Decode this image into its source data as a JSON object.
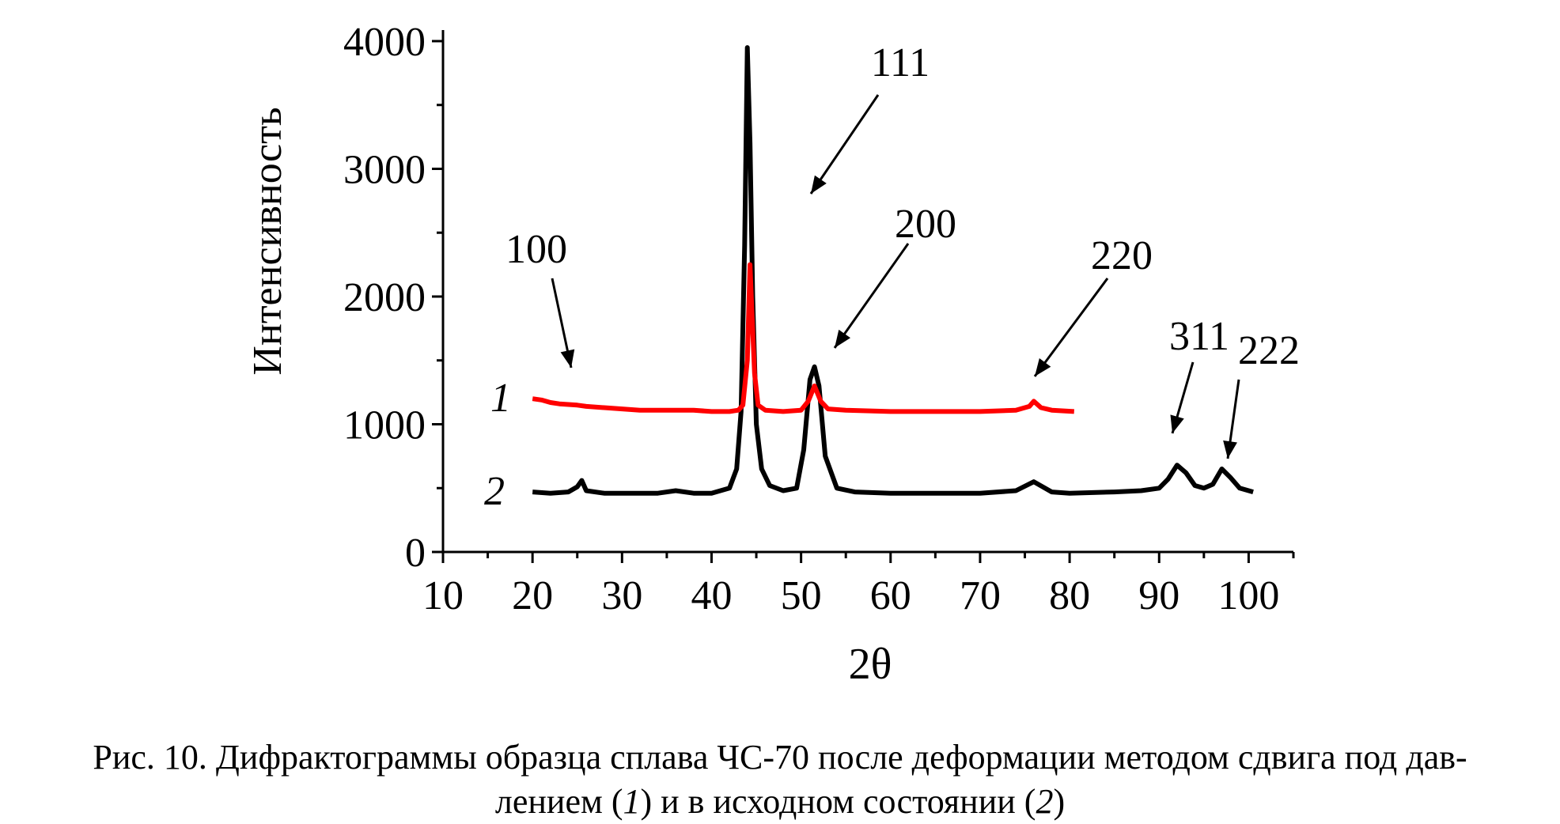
{
  "chart_data": {
    "type": "line",
    "xlabel": "2θ",
    "ylabel": "Интенсивность",
    "xlim": [
      10,
      105
    ],
    "ylim": [
      0,
      4000
    ],
    "xticks": [
      10,
      20,
      30,
      40,
      50,
      60,
      70,
      80,
      90,
      100
    ],
    "yticks": [
      0,
      1000,
      2000,
      3000,
      4000
    ],
    "xtick_labels": [
      "10",
      "20",
      "30",
      "40",
      "50",
      "60",
      "70",
      "80",
      "90",
      "100"
    ],
    "ytick_labels": [
      "0",
      "1000",
      "2000",
      "3000",
      "4000"
    ],
    "grid": false,
    "series": [
      {
        "name": "1",
        "color": "#ff0000",
        "x": [
          20,
          21,
          22,
          23,
          24,
          25,
          26,
          28,
          30,
          32,
          34,
          36,
          38,
          40,
          42,
          43,
          43.5,
          44,
          44.3,
          44.5,
          44.8,
          45.2,
          46,
          48,
          50,
          50.8,
          51.5,
          52.2,
          53,
          55,
          60,
          65,
          70,
          74,
          75.5,
          76,
          76.8,
          78,
          80.5
        ],
        "values": [
          1200,
          1190,
          1170,
          1160,
          1155,
          1150,
          1140,
          1130,
          1120,
          1110,
          1110,
          1110,
          1110,
          1100,
          1100,
          1110,
          1150,
          1500,
          2250,
          1900,
          1400,
          1150,
          1110,
          1100,
          1110,
          1180,
          1300,
          1180,
          1120,
          1110,
          1100,
          1100,
          1100,
          1110,
          1140,
          1180,
          1130,
          1110,
          1100
        ]
      },
      {
        "name": "2",
        "color": "#000000",
        "x": [
          20,
          22,
          24,
          25,
          25.5,
          26,
          28,
          30,
          34,
          36,
          38,
          40,
          42,
          42.8,
          43.3,
          43.7,
          44,
          44.3,
          44.6,
          45,
          45.6,
          46.5,
          48,
          49.5,
          50.3,
          51,
          51.5,
          52,
          52.7,
          54,
          56,
          60,
          65,
          70,
          74,
          76,
          78,
          80,
          85,
          88,
          90,
          91,
          92,
          93,
          94,
          95,
          96,
          97,
          98,
          99,
          100.5
        ],
        "values": [
          470,
          460,
          470,
          510,
          560,
          480,
          460,
          460,
          460,
          480,
          460,
          460,
          500,
          650,
          1100,
          2400,
          3950,
          3200,
          2000,
          1000,
          650,
          520,
          480,
          500,
          800,
          1350,
          1450,
          1300,
          750,
          500,
          470,
          460,
          460,
          460,
          480,
          550,
          470,
          460,
          470,
          480,
          500,
          570,
          680,
          620,
          520,
          500,
          530,
          650,
          580,
          500,
          470
        ]
      }
    ],
    "curve_labels": [
      "1",
      "2"
    ],
    "annotations": [
      {
        "text": "100",
        "x": 24,
        "y": 1500
      },
      {
        "text": "111",
        "x": 52.5,
        "y": 2850
      },
      {
        "text": "200",
        "x": 53,
        "y": 1600
      },
      {
        "text": "220",
        "x": 77,
        "y": 1400
      },
      {
        "text": "311",
        "x": 92,
        "y": 950
      },
      {
        "text": "222",
        "x": 97.5,
        "y": 750
      }
    ]
  },
  "caption": {
    "line1": "Рис. 10. Дифрактограммы образца сплава ЧС-70 после деформации методом сдвига под дав-",
    "line2_a": "лением (",
    "line2_i1": "1",
    "line2_b": ") и в исходном состоянии (",
    "line2_i2": "2",
    "line2_c": ")"
  }
}
